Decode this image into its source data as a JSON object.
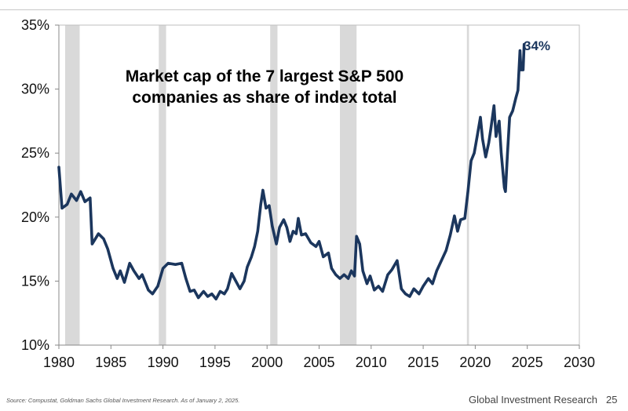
{
  "chart_data": {
    "type": "line",
    "title": "Market cap of the 7 largest S&P 500 companies as share of index total",
    "title_lines": [
      "Market cap of the 7 largest S&P 500",
      "companies as share of index total"
    ],
    "xlabel": "",
    "ylabel": "",
    "xlim": [
      1980,
      2030
    ],
    "ylim": [
      10,
      35
    ],
    "x_ticks": [
      "1980",
      "1985",
      "1990",
      "1995",
      "2000",
      "2005",
      "2010",
      "2015",
      "2020",
      "2025",
      "2030"
    ],
    "y_ticks": [
      "10%",
      "15%",
      "20%",
      "25%",
      "30%",
      "35%"
    ],
    "grid": false,
    "line_color": "#1b365d",
    "recession_color": "#d9d9d9",
    "recessions": [
      [
        1980.6,
        1982.0
      ],
      [
        1989.6,
        1990.3
      ],
      [
        2000.3,
        2001.0
      ],
      [
        2007.0,
        2008.6
      ],
      [
        2019.2,
        2019.4
      ]
    ],
    "end_label": "34%",
    "x": [
      1980.0,
      1980.3,
      1980.8,
      1981.2,
      1981.7,
      1982.1,
      1982.5,
      1983.0,
      1983.2,
      1983.8,
      1984.3,
      1984.7,
      1985.2,
      1985.6,
      1985.9,
      1986.3,
      1986.8,
      1987.2,
      1987.7,
      1988.0,
      1988.6,
      1989.0,
      1989.5,
      1990.0,
      1990.5,
      1991.2,
      1991.8,
      1992.2,
      1992.6,
      1993.0,
      1993.4,
      1993.9,
      1994.3,
      1994.7,
      1995.1,
      1995.5,
      1995.9,
      1996.2,
      1996.6,
      1997.0,
      1997.4,
      1997.8,
      1998.1,
      1998.5,
      1998.8,
      1999.1,
      1999.4,
      1999.6,
      1999.9,
      2000.2,
      2000.5,
      2000.9,
      2001.2,
      2001.6,
      2001.9,
      2002.2,
      2002.5,
      2002.8,
      2003.0,
      2003.3,
      2003.7,
      2004.2,
      2004.7,
      2005.0,
      2005.4,
      2005.9,
      2006.2,
      2006.6,
      2007.0,
      2007.4,
      2007.8,
      2008.1,
      2008.4,
      2008.6,
      2008.9,
      2009.2,
      2009.6,
      2009.9,
      2010.3,
      2010.7,
      2011.1,
      2011.6,
      2012.0,
      2012.5,
      2012.9,
      2013.3,
      2013.7,
      2014.1,
      2014.6,
      2015.0,
      2015.5,
      2015.9,
      2016.3,
      2016.8,
      2017.2,
      2017.6,
      2018.0,
      2018.3,
      2018.6,
      2019.0,
      2019.3,
      2019.6,
      2019.9,
      2020.2,
      2020.5,
      2020.7,
      2021.0,
      2021.3,
      2021.5,
      2021.8,
      2022.0,
      2022.3,
      2022.5,
      2022.8,
      2022.9,
      2023.1,
      2023.3,
      2023.6,
      2023.9,
      2024.1,
      2024.3,
      2024.4,
      2024.6,
      2024.7
    ],
    "y": [
      23.9,
      20.7,
      21.0,
      21.8,
      21.3,
      22.0,
      21.2,
      21.5,
      17.9,
      18.7,
      18.3,
      17.5,
      16.0,
      15.2,
      15.8,
      14.9,
      16.4,
      15.8,
      15.2,
      15.5,
      14.3,
      14.0,
      14.6,
      16.0,
      16.4,
      16.3,
      16.4,
      15.2,
      14.2,
      14.3,
      13.7,
      14.2,
      13.8,
      14.0,
      13.6,
      14.2,
      14.0,
      14.4,
      15.6,
      15.0,
      14.4,
      15.0,
      16.1,
      16.9,
      17.7,
      18.9,
      21.0,
      22.1,
      20.7,
      20.9,
      19.3,
      17.9,
      19.2,
      19.8,
      19.2,
      18.1,
      18.9,
      18.7,
      19.9,
      18.6,
      18.7,
      18.0,
      17.7,
      18.1,
      16.9,
      17.2,
      16.0,
      15.5,
      15.2,
      15.5,
      15.2,
      15.8,
      15.4,
      18.5,
      17.9,
      15.8,
      14.8,
      15.4,
      14.3,
      14.6,
      14.2,
      15.5,
      15.9,
      16.6,
      14.4,
      14.0,
      13.8,
      14.4,
      14.0,
      14.6,
      15.2,
      14.8,
      15.8,
      16.7,
      17.4,
      18.6,
      20.1,
      18.9,
      19.8,
      19.9,
      22.0,
      24.4,
      25.0,
      26.4,
      27.8,
      26.1,
      24.7,
      25.8,
      26.9,
      28.7,
      26.3,
      27.5,
      25.0,
      22.3,
      22.0,
      25.0,
      27.8,
      28.3,
      29.3,
      29.9,
      33.0,
      31.5,
      31.5,
      33.5
    ]
  },
  "footer": {
    "source": "Source: Compustat, Goldman Sachs Global Investment Research. As of January 2, 2025.",
    "brand": "Global Investment Research",
    "page_number": "25"
  }
}
